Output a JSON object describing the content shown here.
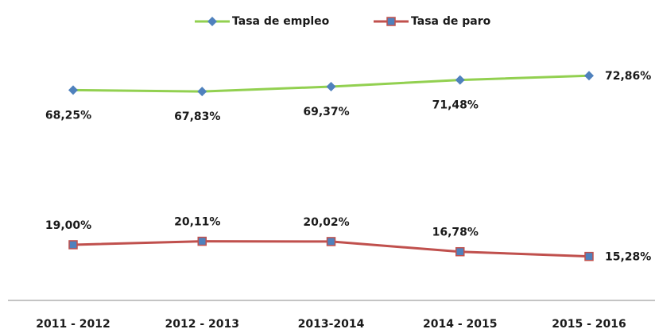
{
  "chart_data": {
    "type": "line",
    "categories": [
      "2011 - 2012",
      "2012 - 2013",
      "2013-2014",
      "2014 - 2015",
      "2015 - 2016"
    ],
    "series": [
      {
        "name": "Tasa de empleo",
        "color": "#92d050",
        "marker": "diamond",
        "marker_color": "#4f81bd",
        "values": [
          68.25,
          67.83,
          69.37,
          71.48,
          72.86
        ],
        "value_labels": [
          "68,25%",
          "67,83%",
          "69,37%",
          "71,48%",
          "72,86%"
        ]
      },
      {
        "name": "Tasa de paro",
        "color": "#c0504d",
        "marker": "square",
        "marker_color": "#4f81bd",
        "values": [
          19.0,
          20.11,
          20.02,
          16.78,
          15.28
        ],
        "value_labels": [
          "19,00%",
          "20,11%",
          "20,02%",
          "16,78%",
          "15,28%"
        ]
      }
    ],
    "legend": "top"
  }
}
